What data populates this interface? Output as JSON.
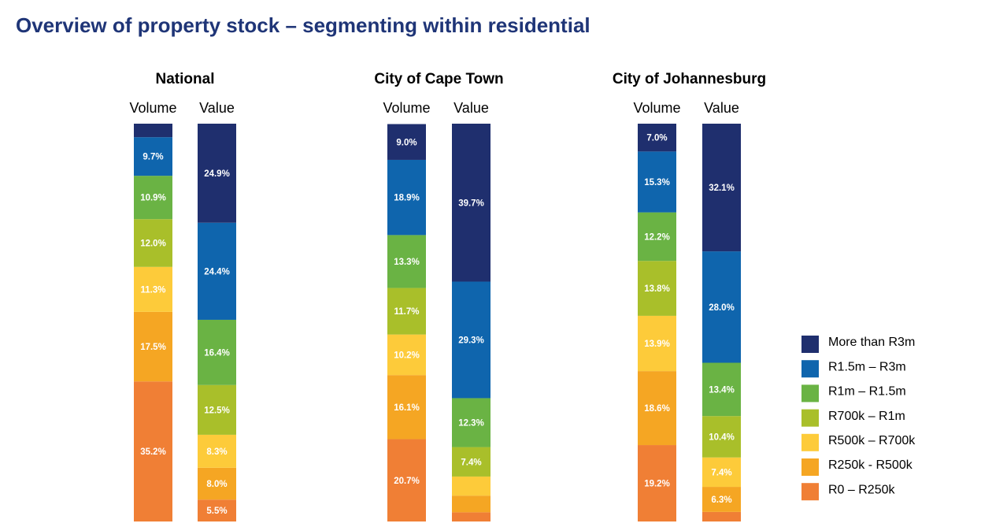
{
  "chart_data": {
    "type": "stacked-bar",
    "title": "Overview of property stock – segmenting within residential",
    "groups": [
      "National",
      "City of Cape Town",
      "City of Johannesburg"
    ],
    "categories": [
      "Volume",
      "Value",
      "Volume",
      "Value",
      "Volume",
      "Value"
    ],
    "ylim": [
      0,
      100
    ],
    "legend": "right",
    "series": [
      {
        "name": "R0 – R250k",
        "color": "#f07f35",
        "values": [
          35.2,
          5.5,
          20.7,
          2.3,
          19.2,
          2.4
        ],
        "value_labels": [
          "35.2%",
          "5.5%",
          "20.7%",
          null,
          "19.2%",
          null
        ]
      },
      {
        "name": "R250k - R500k",
        "color": "#f5a623",
        "values": [
          17.5,
          8.0,
          16.1,
          4.2,
          18.6,
          6.3
        ],
        "value_labels": [
          "17.5%",
          "8.0%",
          "16.1%",
          null,
          "18.6%",
          "6.3%"
        ]
      },
      {
        "name": "R500k – R700k",
        "color": "#fdcb3a",
        "values": [
          11.3,
          8.3,
          10.2,
          4.8,
          13.9,
          7.4
        ],
        "value_labels": [
          "11.3%",
          "8.3%",
          "10.2%",
          null,
          "13.9%",
          "7.4%"
        ]
      },
      {
        "name": "R700k – R1m",
        "color": "#a9bf2a",
        "values": [
          12.0,
          12.5,
          11.7,
          7.4,
          13.8,
          10.4
        ],
        "value_labels": [
          "12.0%",
          "12.5%",
          "11.7%",
          "7.4%",
          "13.8%",
          "10.4%"
        ]
      },
      {
        "name": "R1m – R1.5m",
        "color": "#6ab344",
        "values": [
          10.9,
          16.4,
          13.3,
          12.3,
          12.2,
          13.4
        ],
        "value_labels": [
          "10.9%",
          "16.4%",
          "13.3%",
          "12.3%",
          "12.2%",
          "13.4%"
        ]
      },
      {
        "name": "R1.5m – R3m",
        "color": "#0f65ad",
        "values": [
          9.7,
          24.4,
          18.9,
          29.3,
          15.3,
          28.0
        ],
        "value_labels": [
          "9.7%",
          "24.4%",
          "18.9%",
          "29.3%",
          "15.3%",
          "28.0%"
        ]
      },
      {
        "name": "More than R3m",
        "color": "#1f2f6e",
        "values": [
          3.4,
          24.9,
          9.0,
          39.7,
          7.0,
          32.1
        ],
        "value_labels": [
          null,
          "24.9%",
          "9.0%",
          "39.7%",
          "7.0%",
          "32.1%"
        ]
      }
    ]
  }
}
